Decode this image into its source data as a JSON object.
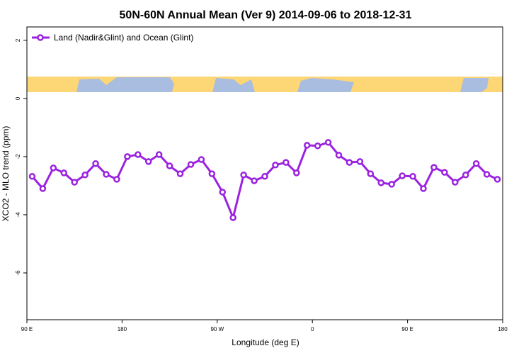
{
  "chart_data": {
    "type": "line",
    "title": "50N-60N Annual Mean (Ver 9)   2014-09-06 to 2018-12-31",
    "x_label": "Longitude (deg E)",
    "y_label": "XCO2 - MLO trend (ppm)",
    "x": [
      95,
      105,
      115,
      125,
      135,
      145,
      155,
      165,
      175,
      185,
      195,
      205,
      215,
      225,
      235,
      245,
      255,
      265,
      275,
      285,
      295,
      305,
      315,
      325,
      335,
      345,
      355,
      365,
      375,
      385,
      395,
      405,
      415,
      425,
      435,
      445,
      455,
      465,
      475,
      485,
      495,
      505,
      515,
      525,
      535
    ],
    "series": [
      {
        "name": "Land (Nadir&Glint) and Ocean (Glint)",
        "color": "#9b22e0",
        "values": [
          -2.68,
          -3.1,
          -2.39,
          -2.56,
          -2.88,
          -2.63,
          -2.24,
          -2.61,
          -2.78,
          -2.0,
          -1.93,
          -2.17,
          -1.93,
          -2.32,
          -2.59,
          -2.27,
          -2.1,
          -2.59,
          -3.22,
          -4.1,
          -2.63,
          -2.83,
          -2.68,
          -2.29,
          -2.2,
          -2.56,
          -1.61,
          -1.63,
          -1.51,
          -1.95,
          -2.2,
          -2.17,
          -2.59,
          -2.9,
          -2.95,
          -2.66,
          -2.68,
          -3.1,
          -2.37,
          -2.54,
          -2.88,
          -2.63,
          -2.24,
          -2.61,
          -2.78
        ]
      }
    ],
    "xlim": [
      90,
      540
    ],
    "xticks": [
      {
        "value": 90,
        "label": "90 E"
      },
      {
        "value": 180,
        "label": "180"
      },
      {
        "value": 270,
        "label": "90 W"
      },
      {
        "value": 360,
        "label": "0"
      },
      {
        "value": 450,
        "label": "90 E"
      },
      {
        "value": 540,
        "label": "180"
      }
    ],
    "ylim": [
      -7.61,
      2.46
    ],
    "yticks": [
      2,
      0,
      -2,
      -4,
      -6
    ],
    "legend": "top-left"
  }
}
